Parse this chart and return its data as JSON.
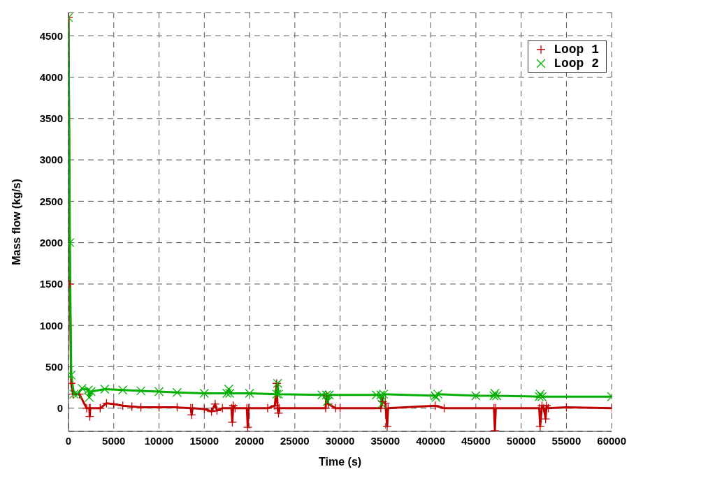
{
  "chart_data": {
    "type": "line",
    "xlabel": "Time (s)",
    "ylabel": "Mass flow (kg/s)",
    "xlim": [
      0,
      60000
    ],
    "ylim": [
      -280,
      4780
    ],
    "xticks": [
      0,
      5000,
      10000,
      15000,
      20000,
      25000,
      30000,
      35000,
      40000,
      45000,
      50000,
      55000,
      60000
    ],
    "yticks": [
      0,
      500,
      1000,
      1500,
      2000,
      2500,
      3000,
      3500,
      4000,
      4500
    ],
    "grid": true,
    "legend": "top right",
    "marker": "cross",
    "line_style": "solid",
    "series": [
      {
        "name": "Loop 1",
        "color": "#c00000",
        "x": [
          0,
          150,
          300,
          500,
          1200,
          2000,
          2300,
          2350,
          2400,
          3500,
          4200,
          5000,
          6000,
          7000,
          8000,
          10000,
          12000,
          13500,
          13600,
          13700,
          15000,
          15800,
          16200,
          16400,
          17000,
          18000,
          18100,
          18200,
          18400,
          19700,
          19800,
          19900,
          22000,
          22800,
          23000,
          23100,
          23200,
          23300,
          28400,
          28500,
          28700,
          29500,
          30000,
          34500,
          34700,
          35000,
          35200,
          35300,
          40500,
          41500,
          47000,
          47100,
          47200,
          52000,
          52100,
          52300,
          52500,
          52700,
          52800,
          53000,
          55000,
          60000
        ],
        "values": [
          4720,
          1500,
          300,
          170,
          170,
          0,
          0,
          -100,
          0,
          0,
          60,
          50,
          30,
          20,
          10,
          10,
          10,
          0,
          -80,
          0,
          -10,
          -40,
          50,
          -30,
          0,
          0,
          -170,
          30,
          0,
          0,
          -230,
          0,
          0,
          30,
          300,
          0,
          -60,
          0,
          0,
          150,
          50,
          0,
          0,
          0,
          80,
          60,
          -220,
          0,
          30,
          0,
          0,
          -270,
          0,
          0,
          -220,
          30,
          0,
          -130,
          30,
          0,
          10,
          0
        ]
      },
      {
        "name": "Loop 2",
        "color": "#00b000",
        "x": [
          0,
          150,
          300,
          600,
          1000,
          1500,
          2200,
          2300,
          2500,
          4000,
          6000,
          8000,
          10000,
          12000,
          15000,
          17500,
          17700,
          17800,
          20000,
          23000,
          23100,
          23200,
          28000,
          28500,
          28600,
          28800,
          34000,
          34500,
          34600,
          34800,
          40500,
          40600,
          40800,
          45000,
          47000,
          47100,
          47300,
          52000,
          52100,
          52300,
          60000
        ],
        "values": [
          4720,
          2000,
          400,
          170,
          170,
          240,
          220,
          130,
          200,
          230,
          220,
          210,
          200,
          190,
          180,
          180,
          230,
          180,
          180,
          170,
          300,
          170,
          160,
          160,
          80,
          160,
          160,
          160,
          50,
          170,
          150,
          130,
          170,
          150,
          150,
          180,
          150,
          140,
          170,
          140,
          140
        ]
      }
    ]
  }
}
